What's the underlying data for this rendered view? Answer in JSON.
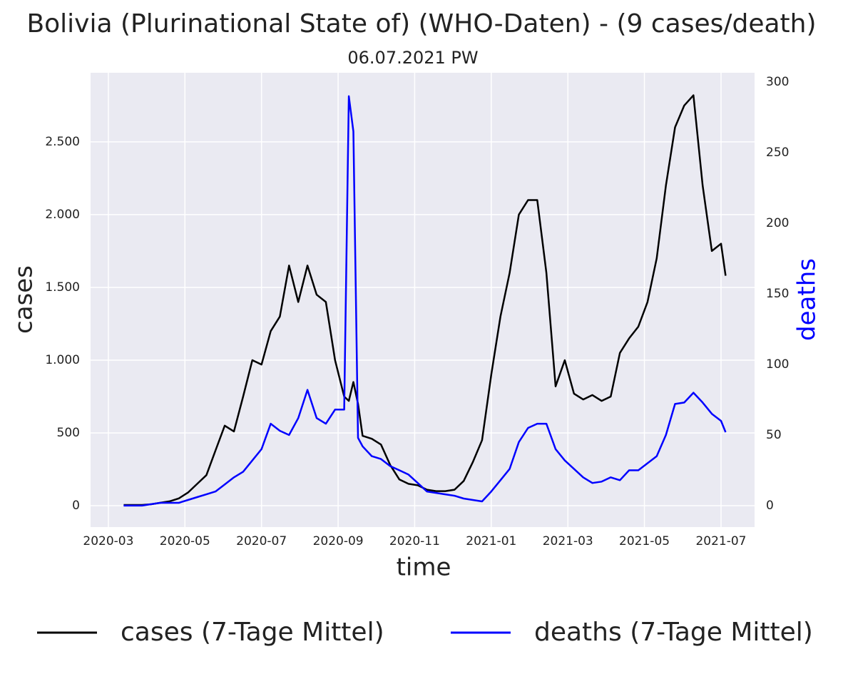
{
  "chart_data": {
    "type": "line",
    "title": "Bolivia (Plurinational State of) (WHO-Daten) - (9 cases/death)",
    "subtitle": "06.07.2021 PW",
    "x_label": "time",
    "y_label": "cases",
    "y2_label": "deaths",
    "y2_label_color": "#0000ff",
    "grid": true,
    "legend": "below",
    "x": [
      2020.2,
      2020.22,
      2020.24,
      2020.26,
      2020.28,
      2020.3,
      2020.32,
      2020.34,
      2020.36,
      2020.38,
      2020.4,
      2020.42,
      2020.44,
      2020.46,
      2020.48,
      2020.5,
      2020.52,
      2020.54,
      2020.56,
      2020.58,
      2020.6,
      2020.62,
      2020.64,
      2020.66,
      2020.68,
      2020.69,
      2020.7,
      2020.71,
      2020.72,
      2020.74,
      2020.76,
      2020.78,
      2020.8,
      2020.82,
      2020.84,
      2020.86,
      2020.88,
      2020.9,
      2020.92,
      2020.94,
      2020.96,
      2020.98,
      2021.0,
      2021.02,
      2021.04,
      2021.06,
      2021.08,
      2021.1,
      2021.12,
      2021.14,
      2021.16,
      2021.18,
      2021.2,
      2021.22,
      2021.24,
      2021.26,
      2021.28,
      2021.3,
      2021.32,
      2021.34,
      2021.36,
      2021.38,
      2021.4,
      2021.42,
      2021.44,
      2021.46,
      2021.48,
      2021.5,
      2021.51
    ],
    "series": [
      {
        "name": "cases (7-Tage Mittel)",
        "color": "#000000",
        "axis": "y",
        "values": [
          5,
          5,
          5,
          10,
          20,
          30,
          50,
          90,
          150,
          210,
          380,
          550,
          510,
          750,
          1000,
          970,
          1200,
          1300,
          1650,
          1400,
          1650,
          1450,
          1400,
          1000,
          750,
          720,
          850,
          700,
          480,
          460,
          420,
          280,
          180,
          150,
          140,
          110,
          100,
          100,
          110,
          170,
          300,
          450,
          900,
          1300,
          1600,
          2000,
          2100,
          2100,
          1600,
          820,
          1000,
          770,
          730,
          760,
          720,
          750,
          1050,
          1150,
          1230,
          1400,
          1700,
          2200,
          2600,
          2750,
          2820,
          2200,
          1750,
          1800,
          1580
        ]
      },
      {
        "name": "deaths (7-Tage Mittel)",
        "color": "#0000ff",
        "axis": "y2",
        "values": [
          0,
          0,
          0,
          1,
          2,
          2,
          2,
          4,
          6,
          8,
          10,
          15,
          20,
          24,
          32,
          40,
          58,
          53,
          50,
          62,
          82,
          62,
          58,
          68,
          68,
          290,
          265,
          48,
          42,
          35,
          33,
          28,
          25,
          22,
          16,
          10,
          9,
          8,
          7,
          5,
          4,
          3,
          10,
          18,
          26,
          45,
          55,
          58,
          58,
          40,
          32,
          26,
          20,
          16,
          17,
          20,
          18,
          25,
          25,
          30,
          35,
          50,
          72,
          73,
          80,
          73,
          65,
          60,
          52
        ]
      }
    ],
    "xlim": [
      2020.128,
      2021.573
    ],
    "xticks": [
      {
        "value": 2020.1667,
        "label": "2020-03"
      },
      {
        "value": 2020.3333,
        "label": "2020-05"
      },
      {
        "value": 2020.5,
        "label": "2020-07"
      },
      {
        "value": 2020.6667,
        "label": "2020-09"
      },
      {
        "value": 2020.8333,
        "label": "2020-11"
      },
      {
        "value": 2021.0,
        "label": "2021-01"
      },
      {
        "value": 2021.1667,
        "label": "2021-03"
      },
      {
        "value": 2021.3333,
        "label": "2021-05"
      },
      {
        "value": 2021.5,
        "label": "2021-07"
      }
    ],
    "ylim": [
      -147,
      2975
    ],
    "yticks": [
      0,
      500,
      {
        "value": 1000,
        "label": "1.000"
      },
      {
        "value": 1500,
        "label": "1.500"
      },
      {
        "value": 2000,
        "label": "2.000"
      },
      {
        "value": 2500,
        "label": "2.500"
      }
    ],
    "y2lim": [
      -15.2,
      306.6
    ],
    "y2ticks": [
      0,
      50,
      100,
      150,
      200,
      250,
      300
    ]
  }
}
